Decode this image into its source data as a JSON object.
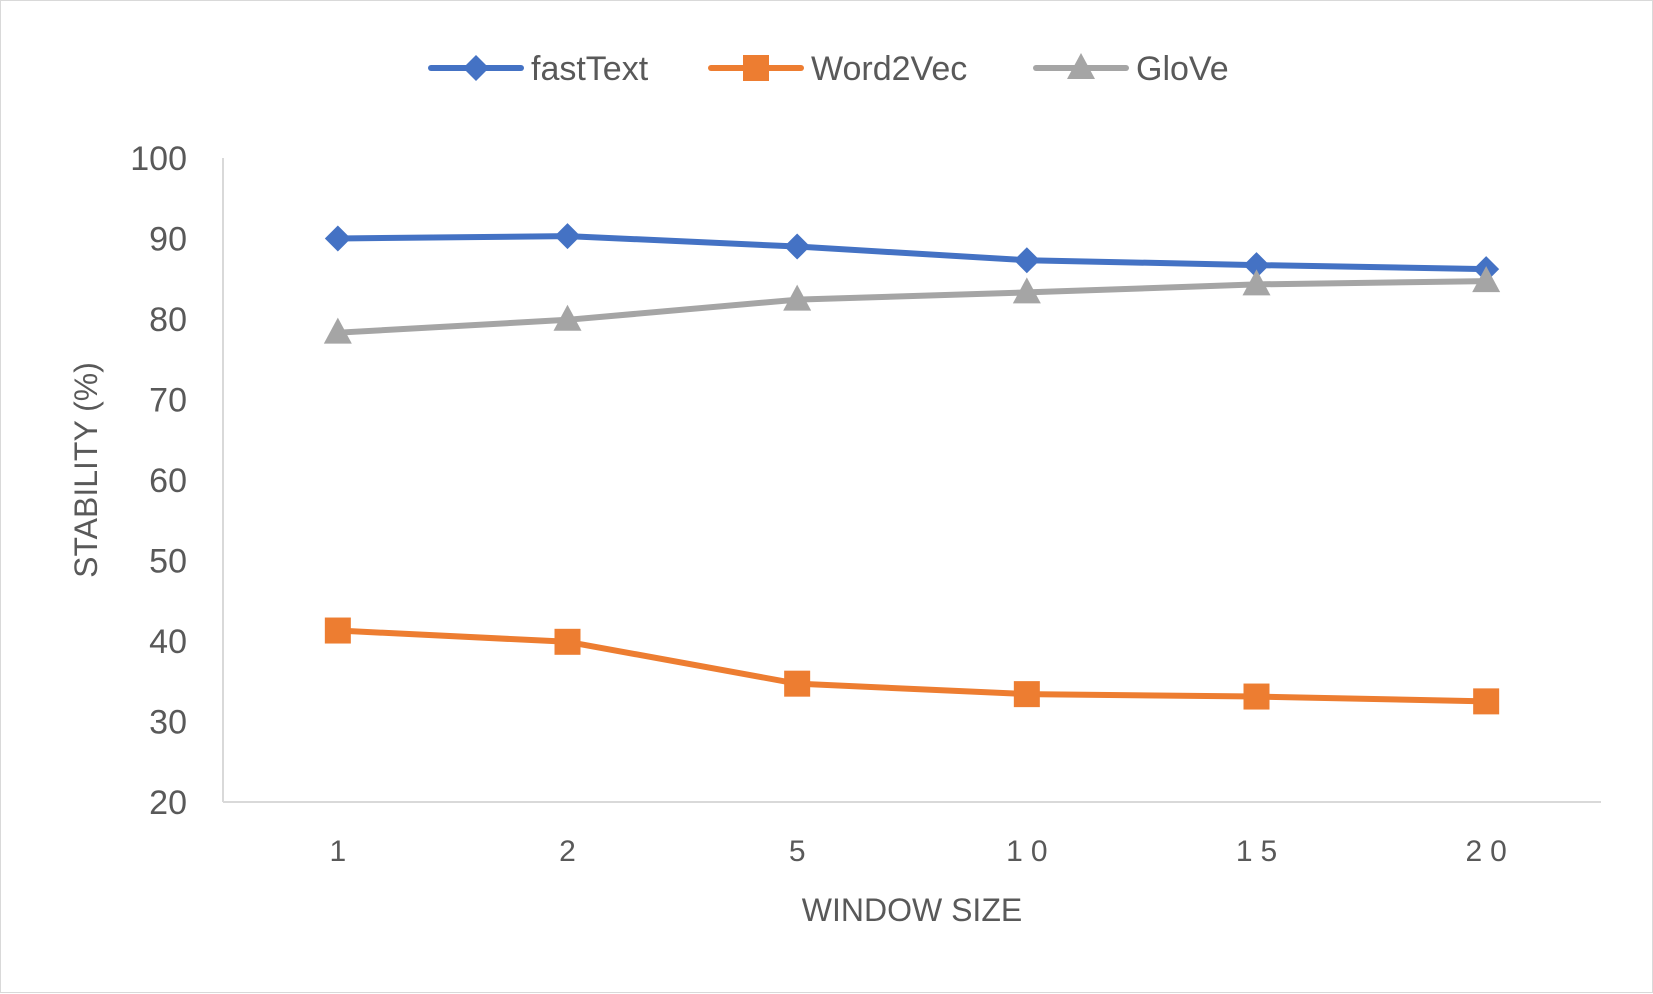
{
  "chart_data": {
    "type": "line",
    "title": "",
    "xlabel": "WINDOW SIZE",
    "ylabel": "STABILITY (%)",
    "categories": [
      "1",
      "2",
      "5",
      "10",
      "15",
      "20"
    ],
    "ylim": [
      20,
      100
    ],
    "yticks": [
      20,
      30,
      40,
      50,
      60,
      70,
      80,
      90,
      100
    ],
    "grid": false,
    "legend_position": "top",
    "series": [
      {
        "name": "fastText",
        "color": "#4472c4",
        "marker": "diamond",
        "values": [
          90.0,
          90.3,
          89.0,
          87.3,
          86.7,
          86.2
        ]
      },
      {
        "name": "Word2Vec",
        "color": "#ed7d31",
        "marker": "square",
        "values": [
          41.3,
          39.9,
          34.7,
          33.4,
          33.1,
          32.5
        ]
      },
      {
        "name": "GloVe",
        "color": "#a5a5a5",
        "marker": "triangle",
        "values": [
          78.3,
          79.9,
          82.4,
          83.3,
          84.3,
          84.7
        ]
      }
    ]
  }
}
